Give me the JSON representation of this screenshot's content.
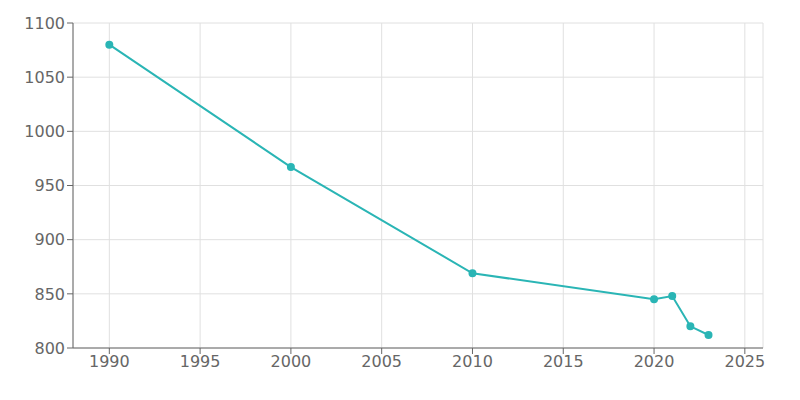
{
  "chart_data": {
    "type": "line",
    "x": [
      1990,
      2000,
      2010,
      2020,
      2021,
      2022,
      2023
    ],
    "values": [
      1080,
      967,
      869,
      845,
      848,
      820,
      812
    ],
    "color": "#2ab5b5",
    "marker": "circle",
    "xlim": [
      1988,
      2026
    ],
    "xticks": [
      1990,
      1995,
      2000,
      2005,
      2010,
      2015,
      2020,
      2025
    ],
    "ylim": [
      800,
      1100
    ],
    "yticks": [
      800,
      850,
      900,
      950,
      1000,
      1050,
      1100
    ],
    "grid": true
  }
}
